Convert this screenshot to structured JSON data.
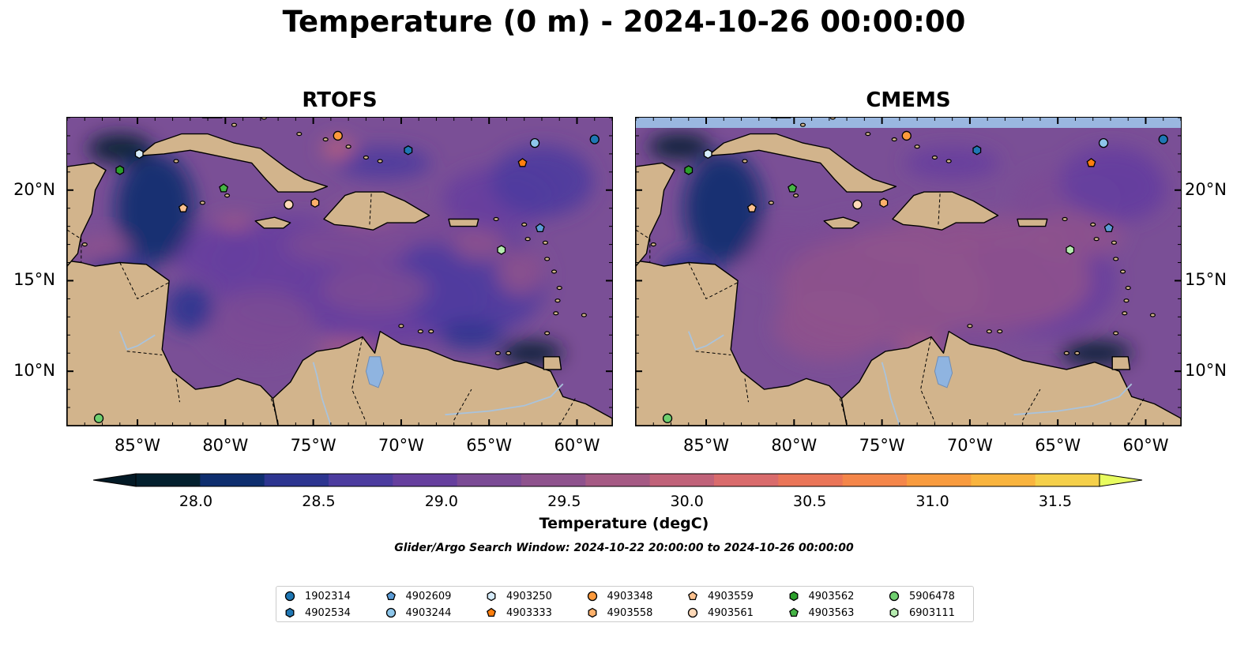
{
  "title": "Temperature (0 m) - 2024-10-26 00:00:00",
  "panels": [
    {
      "id": "rtofs",
      "title": "RTOFS"
    },
    {
      "id": "cmems",
      "title": "CMEMS"
    }
  ],
  "map": {
    "lon_range": [
      -89,
      -58
    ],
    "lat_range": [
      7,
      24
    ],
    "lon_ticks": [
      "85°W",
      "80°W",
      "75°W",
      "70°W",
      "65°W",
      "60°W"
    ],
    "lon_tick_values": [
      -85,
      -80,
      -75,
      -70,
      -65,
      -60
    ],
    "lat_ticks": [
      "20°N",
      "15°N",
      "10°N"
    ],
    "lat_tick_values": [
      20,
      15,
      10
    ],
    "colors": {
      "land": "#d2b48c",
      "ocean_base": "#7a4f96",
      "lake": "#8fb4e0",
      "coast": "#000000"
    }
  },
  "colorbar": {
    "label": "Temperature (degC)",
    "min": 28.0,
    "max": 31.5,
    "ticks": [
      "28.0",
      "28.5",
      "29.0",
      "29.5",
      "30.0",
      "30.5",
      "31.0",
      "31.5"
    ],
    "tick_values": [
      28.0,
      28.5,
      29.0,
      29.5,
      30.0,
      30.5,
      31.0,
      31.5
    ],
    "colors": [
      "#03202e",
      "#0e2e6e",
      "#2d3590",
      "#4c3c9f",
      "#663f9e",
      "#7b4b95",
      "#8e528d",
      "#a55a84",
      "#c06279",
      "#d96b6c",
      "#ea7558",
      "#f4864a",
      "#f89b3e",
      "#f9b43e",
      "#f5d04a"
    ],
    "extend_low_color": "#031a26",
    "extend_high_color": "#e8fc60"
  },
  "search_window": "Glider/Argo Search Window: 2024-10-22 20:00:00 to 2024-10-26 00:00:00",
  "platforms": [
    {
      "id": "1902314",
      "marker": "circle",
      "color": "#1f77b4",
      "lon": -59.0,
      "lat": 22.8
    },
    {
      "id": "4902534",
      "marker": "hexagon",
      "color": "#1f77b4",
      "lon": -69.6,
      "lat": 22.2
    },
    {
      "id": "4902609",
      "marker": "pentagon",
      "color": "#5b9bd5",
      "lon": -62.1,
      "lat": 17.9
    },
    {
      "id": "4903244",
      "marker": "circle",
      "color": "#8ec6ea",
      "lon": -62.4,
      "lat": 22.6
    },
    {
      "id": "4903250",
      "marker": "hexagon",
      "color": "#d6ecfb",
      "lon": -84.9,
      "lat": 22.0
    },
    {
      "id": "4903333",
      "marker": "pentagon",
      "color": "#ff7f0e",
      "lon": -63.1,
      "lat": 21.5
    },
    {
      "id": "4903348",
      "marker": "circle",
      "color": "#fd9a3c",
      "lon": -73.6,
      "lat": 23.0
    },
    {
      "id": "4903558",
      "marker": "hexagon",
      "color": "#fdb06a",
      "lon": -74.9,
      "lat": 19.3
    },
    {
      "id": "4903559",
      "marker": "pentagon",
      "color": "#fdc18e",
      "lon": -82.4,
      "lat": 19.0
    },
    {
      "id": "4903561",
      "marker": "circle",
      "color": "#fed9b8",
      "lon": -76.4,
      "lat": 19.2
    },
    {
      "id": "4903562",
      "marker": "hexagon",
      "color": "#2ca02c",
      "lon": -86.0,
      "lat": 21.1
    },
    {
      "id": "4903563",
      "marker": "pentagon",
      "color": "#46b446",
      "lon": -80.1,
      "lat": 20.1
    },
    {
      "id": "5906478",
      "marker": "circle",
      "color": "#6fcf6f",
      "lon": -87.2,
      "lat": 7.4
    },
    {
      "id": "6903111",
      "marker": "hexagon",
      "color": "#b6ecb0",
      "lon": -64.3,
      "lat": 16.7
    }
  ]
}
